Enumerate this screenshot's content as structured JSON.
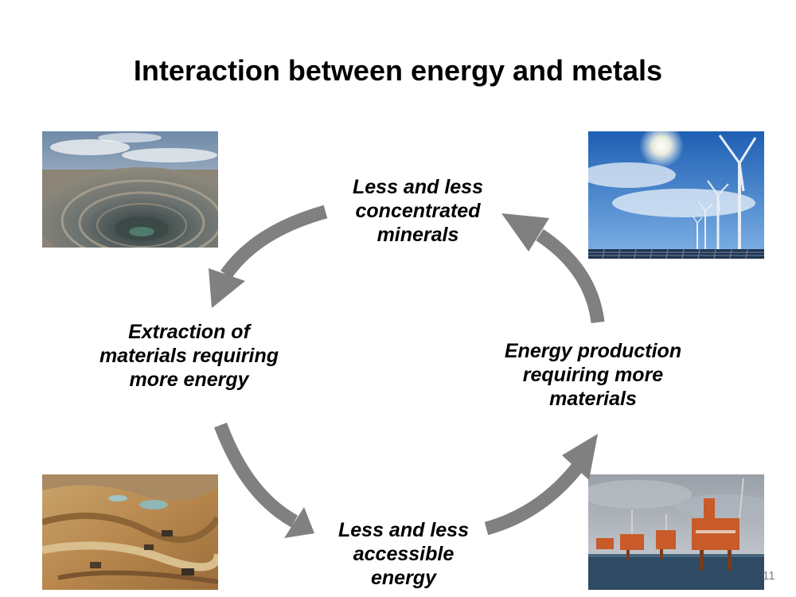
{
  "slide": {
    "title": "Interaction between energy and metals",
    "page_number": "11"
  },
  "cycle": {
    "top": "Less and less\nconcentrated\nminerals",
    "left": "Extraction of\nmaterials requiring\nmore energy",
    "bottom": "Less and less\naccessible\nenergy",
    "right": "Energy production\nrequiring more\nmaterials"
  },
  "colors": {
    "arrow": "#808080",
    "text": "#000000",
    "page_number": "#7f7f7f"
  },
  "images": {
    "top_left": "open-pit-mine-photo",
    "top_right": "wind-turbines-solar-panels-photo",
    "bottom_left": "mining-excavation-site-photo",
    "bottom_right": "offshore-oil-platforms-photo"
  }
}
